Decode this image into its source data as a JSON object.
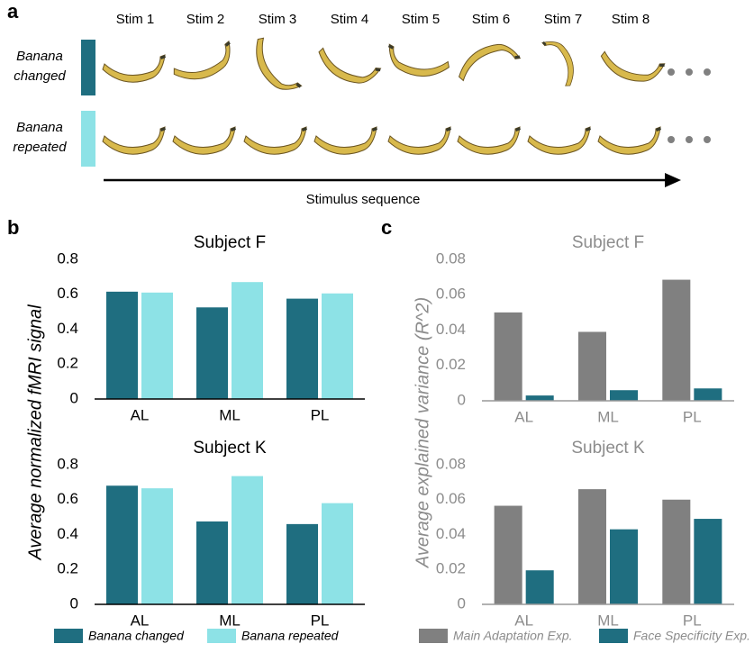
{
  "panel_labels": [
    "a",
    "b",
    "c"
  ],
  "stimulus": {
    "stims": [
      "Stim 1",
      "Stim 2",
      "Stim 3",
      "Stim 4",
      "Stim 5",
      "Stim 6",
      "Stim 7",
      "Stim 8"
    ],
    "rows": [
      {
        "name": "Banana changed",
        "color": "#1f6e80"
      },
      {
        "name": "Banana repeated",
        "color": "#8de2e6"
      }
    ],
    "axis_label": "Stimulus sequence"
  },
  "chart_data": [
    {
      "type": "bar",
      "title": "Subject F",
      "ylabel": "Average normalized fMRI signal",
      "categories": [
        "AL",
        "ML",
        "PL"
      ],
      "series": [
        {
          "name": "Banana changed",
          "color": "#1f6e80",
          "values": [
            0.615,
            0.525,
            0.575
          ]
        },
        {
          "name": "Banana repeated",
          "color": "#8de2e6",
          "values": [
            0.61,
            0.67,
            0.605
          ]
        }
      ],
      "ylim": [
        0,
        0.8
      ],
      "yticks": [
        0,
        0.2,
        0.4,
        0.6,
        0.8
      ],
      "text_color": "#000000"
    },
    {
      "type": "bar",
      "title": "Subject K",
      "categories": [
        "AL",
        "ML",
        "PL"
      ],
      "series": [
        {
          "name": "Banana changed",
          "color": "#1f6e80",
          "values": [
            0.68,
            0.475,
            0.46
          ]
        },
        {
          "name": "Banana repeated",
          "color": "#8de2e6",
          "values": [
            0.665,
            0.735,
            0.58
          ]
        }
      ],
      "ylim": [
        0,
        0.8
      ],
      "yticks": [
        0,
        0.2,
        0.4,
        0.6,
        0.8
      ],
      "text_color": "#000000"
    },
    {
      "type": "bar",
      "title": "Subject F",
      "ylabel": "Average explained variance (R^2)",
      "categories": [
        "AL",
        "ML",
        "PL"
      ],
      "series": [
        {
          "name": "Main Adaptation Exp.",
          "color": "#808080",
          "values": [
            0.05,
            0.039,
            0.0685
          ]
        },
        {
          "name": "Face Specificity Exp.",
          "color": "#1f6e80",
          "values": [
            0.003,
            0.006,
            0.007
          ]
        }
      ],
      "ylim": [
        0,
        0.08
      ],
      "yticks": [
        0,
        0.02,
        0.04,
        0.06,
        0.08
      ],
      "text_color": "#8c8c8c"
    },
    {
      "type": "bar",
      "title": "Subject K",
      "categories": [
        "AL",
        "ML",
        "PL"
      ],
      "series": [
        {
          "name": "Main Adaptation Exp.",
          "color": "#808080",
          "values": [
            0.0565,
            0.066,
            0.06
          ]
        },
        {
          "name": "Face Specificity Exp.",
          "color": "#1f6e80",
          "values": [
            0.0195,
            0.043,
            0.049
          ]
        }
      ],
      "ylim": [
        0,
        0.08
      ],
      "yticks": [
        0,
        0.02,
        0.04,
        0.06,
        0.08
      ],
      "text_color": "#8c8c8c"
    }
  ]
}
